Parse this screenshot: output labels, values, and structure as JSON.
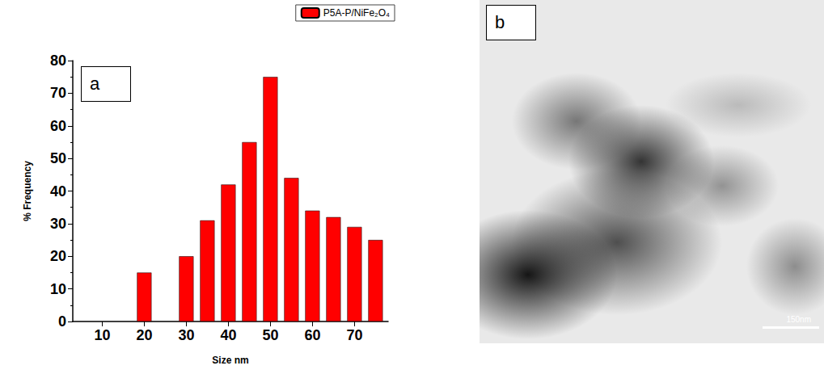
{
  "chart_data": {
    "type": "bar",
    "x": [
      20,
      30,
      35,
      40,
      45,
      50,
      55,
      60,
      65,
      70,
      75
    ],
    "series": [
      {
        "name": "P5A-P/NiFe₂O₄",
        "color": "#ff0000",
        "values": [
          15,
          20,
          31,
          42,
          55,
          75,
          44,
          34,
          32,
          29,
          25
        ]
      }
    ],
    "x_label": "Size nm",
    "y_label": "% Frequency",
    "xlim": [
      3,
      78
    ],
    "xticks": [
      10,
      20,
      30,
      40,
      50,
      60,
      70
    ],
    "ylim": [
      0,
      80
    ],
    "yticks": [
      0,
      10,
      20,
      30,
      40,
      50,
      60,
      70,
      80
    ],
    "grid": false,
    "legend": "top-right",
    "annotations": [
      "a"
    ]
  },
  "image_panel": {
    "label": "b",
    "scale_bar": "150nm"
  }
}
